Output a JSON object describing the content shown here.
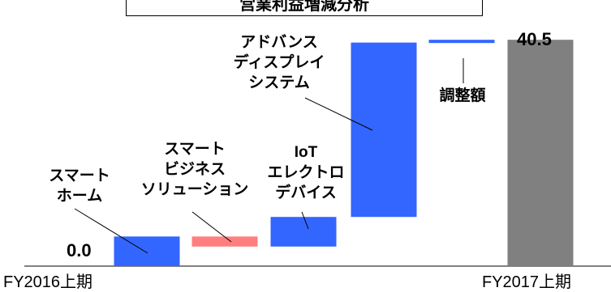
{
  "chart_data": {
    "type": "bar",
    "subtype": "waterfall",
    "title": "営業利益増減分析",
    "categories": [
      "FY2016上期",
      "スマートホーム",
      "スマートビジネスソリューション",
      "IoTエレクトロデバイス",
      "アドバンスディスプレイシステム",
      "調整額",
      "FY2017上期"
    ],
    "steps": [
      {
        "name": "FY2016上期",
        "lines": [
          ""
        ],
        "kind": "total",
        "start": 0,
        "end": 0.0
      },
      {
        "name": "スマートホーム",
        "lines": [
          "スマート",
          "ホーム"
        ],
        "kind": "increase",
        "start": 0.0,
        "end": 5.3
      },
      {
        "name": "スマートビジネスソリューション",
        "lines": [
          "スマート",
          "ビジネス",
          "ソリューション"
        ],
        "kind": "decrease",
        "start": 5.3,
        "end": 3.5
      },
      {
        "name": "IoTエレクトロデバイス",
        "lines": [
          "IoT",
          "エレクトロ",
          "デバイス"
        ],
        "kind": "increase",
        "start": 3.5,
        "end": 8.8
      },
      {
        "name": "アドバンスディスプレイシステム",
        "lines": [
          "アドバンス",
          "ディスプレイ",
          "システム"
        ],
        "kind": "increase",
        "start": 8.8,
        "end": 40.0
      },
      {
        "name": "調整額",
        "lines": [
          "調整額"
        ],
        "kind": "increase",
        "start": 40.0,
        "end": 40.5
      },
      {
        "name": "FY2017上期",
        "lines": [
          ""
        ],
        "kind": "total",
        "start": 0,
        "end": 40.5
      }
    ],
    "data_labels": {
      "start": "0.0",
      "end": "40.5"
    },
    "x_labels": {
      "left": "FY2016上期",
      "right": "FY2017上期"
    },
    "ylim": [
      0,
      44
    ],
    "colors": {
      "increase": "#3366ff",
      "decrease": "#ff7f7f",
      "total": "#808080"
    },
    "xlabel": "",
    "ylabel": "",
    "grid": false,
    "legend": "none"
  }
}
